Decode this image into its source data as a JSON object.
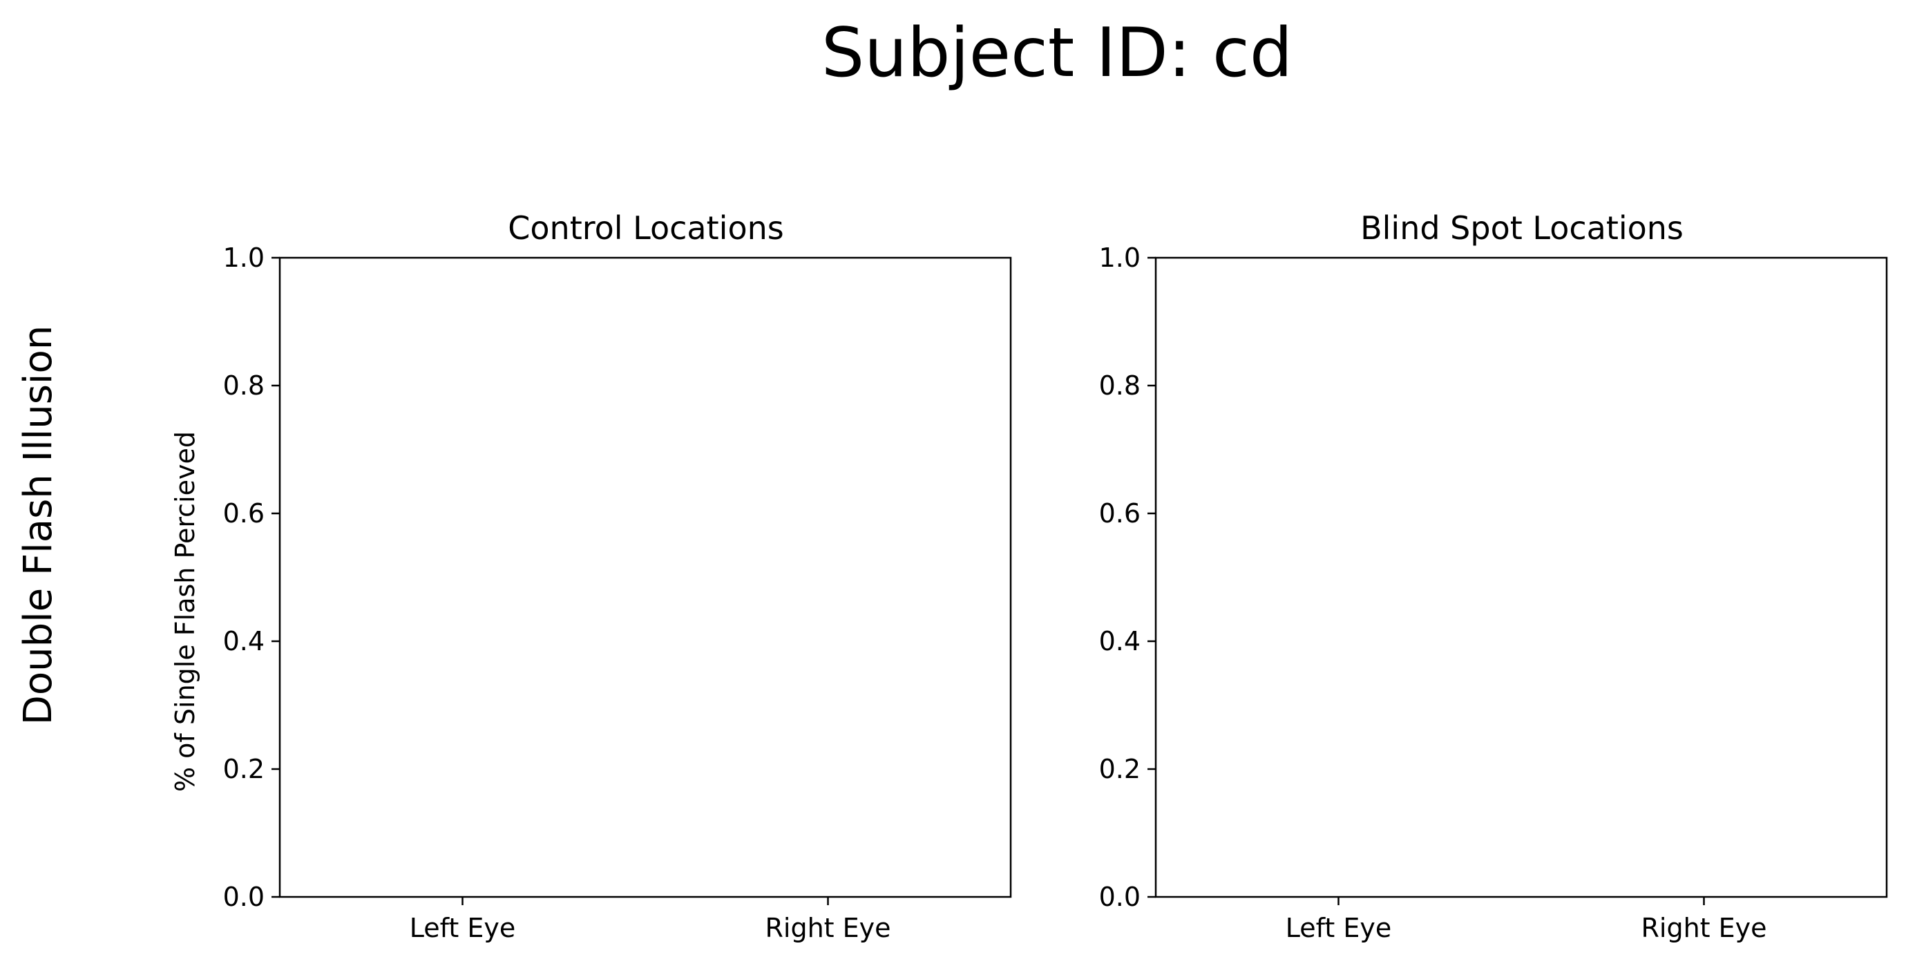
{
  "figure": {
    "title": "Subject ID: cd",
    "row_label": "Double Flash Illusion"
  },
  "chart_data": [
    {
      "type": "bar",
      "title": "Control Locations",
      "xlabel": "",
      "ylabel": "% of Single Flash Percieved",
      "categories": [
        "Left Eye",
        "Right Eye"
      ],
      "yticks": [
        "0.0",
        "0.2",
        "0.4",
        "0.6",
        "0.8",
        "1.0"
      ],
      "ylim": [
        0,
        1
      ],
      "series": [],
      "grid": false
    },
    {
      "type": "bar",
      "title": "Blind Spot Locations",
      "xlabel": "",
      "ylabel": "",
      "categories": [
        "Left Eye",
        "Right Eye"
      ],
      "yticks": [
        "0.0",
        "0.2",
        "0.4",
        "0.6",
        "0.8",
        "1.0"
      ],
      "ylim": [
        0,
        1
      ],
      "series": [],
      "grid": false
    }
  ]
}
